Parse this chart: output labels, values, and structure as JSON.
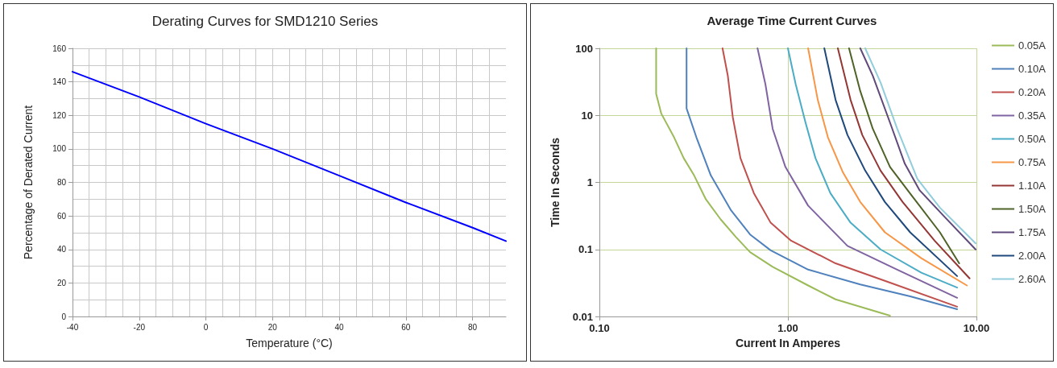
{
  "chart_data": [
    {
      "type": "line",
      "title": "Derating Curves for SMD1210 Series",
      "xlabel": "Temperature (°C)",
      "ylabel": "Percentage of Derated Current",
      "xlim": [
        -40,
        90
      ],
      "xticks": [
        -40,
        -20,
        0,
        20,
        40,
        60,
        80
      ],
      "ylim": [
        0,
        160
      ],
      "yticks": [
        0,
        20,
        40,
        60,
        80,
        100,
        120,
        140,
        160
      ],
      "grid": true,
      "marker": "none",
      "legend": false,
      "x": [
        -40,
        -20,
        0,
        20,
        40,
        60,
        80,
        90
      ],
      "series": [
        {
          "color": "#0000ff",
          "values": [
            146,
            131,
            115,
            100,
            84,
            68,
            53,
            45
          ]
        }
      ]
    },
    {
      "type": "line",
      "title": "Average Time Current Curves",
      "xlabel": "Current In Amperes",
      "ylabel": "Time In Seconds",
      "log": "xy",
      "xlim": [
        0.1,
        10
      ],
      "xticks": [
        {
          "value": 0.1,
          "label": "0.10"
        },
        {
          "value": 1,
          "label": "1.00"
        },
        {
          "value": 10,
          "label": "10.00"
        }
      ],
      "ylim": [
        0.01,
        100
      ],
      "yticks": [
        0.01,
        0.1,
        1,
        10,
        100
      ],
      "grid": true,
      "marker": "none",
      "legend": "right",
      "series": [
        {
          "name": "0.05A",
          "color": "#9bbb59",
          "x": [
            0.2,
            0.2,
            0.213,
            0.249,
            0.28,
            0.318,
            0.367,
            0.44,
            0.53,
            0.63,
            0.83,
            1.28,
            1.79,
            3.48
          ],
          "values": [
            100,
            21,
            10.6,
            4.7,
            2.3,
            1.27,
            0.56,
            0.28,
            0.153,
            0.091,
            0.055,
            0.029,
            0.018,
            0.0103
          ]
        },
        {
          "name": "0.10A",
          "color": "#4f81bd",
          "x": [
            0.29,
            0.29,
            0.327,
            0.39,
            0.5,
            0.63,
            0.81,
            1.28,
            2.42,
            4.45,
            7.9
          ],
          "values": [
            100,
            12.7,
            4.7,
            1.27,
            0.38,
            0.167,
            0.097,
            0.05,
            0.03,
            0.02,
            0.0128
          ]
        },
        {
          "name": "0.20A",
          "color": "#c0504d",
          "x": [
            0.45,
            0.48,
            0.51,
            0.56,
            0.66,
            0.81,
            1.04,
            1.79,
            3.27,
            7.9
          ],
          "values": [
            100,
            39,
            9.4,
            2.3,
            0.69,
            0.25,
            0.135,
            0.062,
            0.034,
            0.014
          ]
        },
        {
          "name": "0.35A",
          "color": "#8064a2",
          "x": [
            0.69,
            0.76,
            0.83,
            0.97,
            1.28,
            2.07,
            3.8,
            7.9
          ],
          "values": [
            100,
            29,
            6.3,
            1.7,
            0.45,
            0.113,
            0.05,
            0.019
          ]
        },
        {
          "name": "0.50A",
          "color": "#4bacc6",
          "x": [
            1.0,
            1.1,
            1.24,
            1.4,
            1.68,
            2.15,
            3.1,
            5.1,
            7.9
          ],
          "values": [
            100,
            29,
            7.8,
            2.3,
            0.69,
            0.25,
            0.1,
            0.045,
            0.027
          ]
        },
        {
          "name": "0.75A",
          "color": "#f79646",
          "x": [
            1.28,
            1.44,
            1.63,
            1.96,
            2.42,
            3.27,
            5.1,
            8.9
          ],
          "values": [
            100,
            17,
            4.7,
            1.4,
            0.51,
            0.18,
            0.074,
            0.029
          ]
        },
        {
          "name": "1.10A",
          "color": "#943634",
          "x": [
            1.84,
            2.15,
            2.48,
            3.1,
            4.06,
            6.0,
            9.2
          ],
          "values": [
            100,
            17,
            5.1,
            1.5,
            0.51,
            0.135,
            0.037
          ]
        },
        {
          "name": "1.50A",
          "color": "#4f6228",
          "x": [
            2.11,
            2.42,
            2.82,
            3.48,
            4.57,
            6.4,
            8.1
          ],
          "values": [
            100,
            23,
            6.3,
            1.7,
            0.62,
            0.18,
            0.062
          ]
        },
        {
          "name": "1.75A",
          "color": "#5f497a",
          "x": [
            2.42,
            2.82,
            3.48,
            4.17,
            5.0,
            6.75,
            9.9
          ],
          "values": [
            100,
            39,
            7.8,
            1.9,
            0.76,
            0.31,
            0.1
          ]
        },
        {
          "name": "2.00A",
          "color": "#1f497d",
          "x": [
            1.56,
            1.79,
            2.07,
            2.57,
            3.27,
            4.45,
            7.9
          ],
          "values": [
            100,
            17,
            5.1,
            1.5,
            0.51,
            0.18,
            0.04
          ]
        },
        {
          "name": "2.60A",
          "color": "#92cddc",
          "x": [
            2.57,
            3.1,
            3.8,
            4.86,
            6.4,
            9.9
          ],
          "values": [
            100,
            31,
            6.3,
            1.13,
            0.42,
            0.123
          ]
        }
      ]
    }
  ]
}
